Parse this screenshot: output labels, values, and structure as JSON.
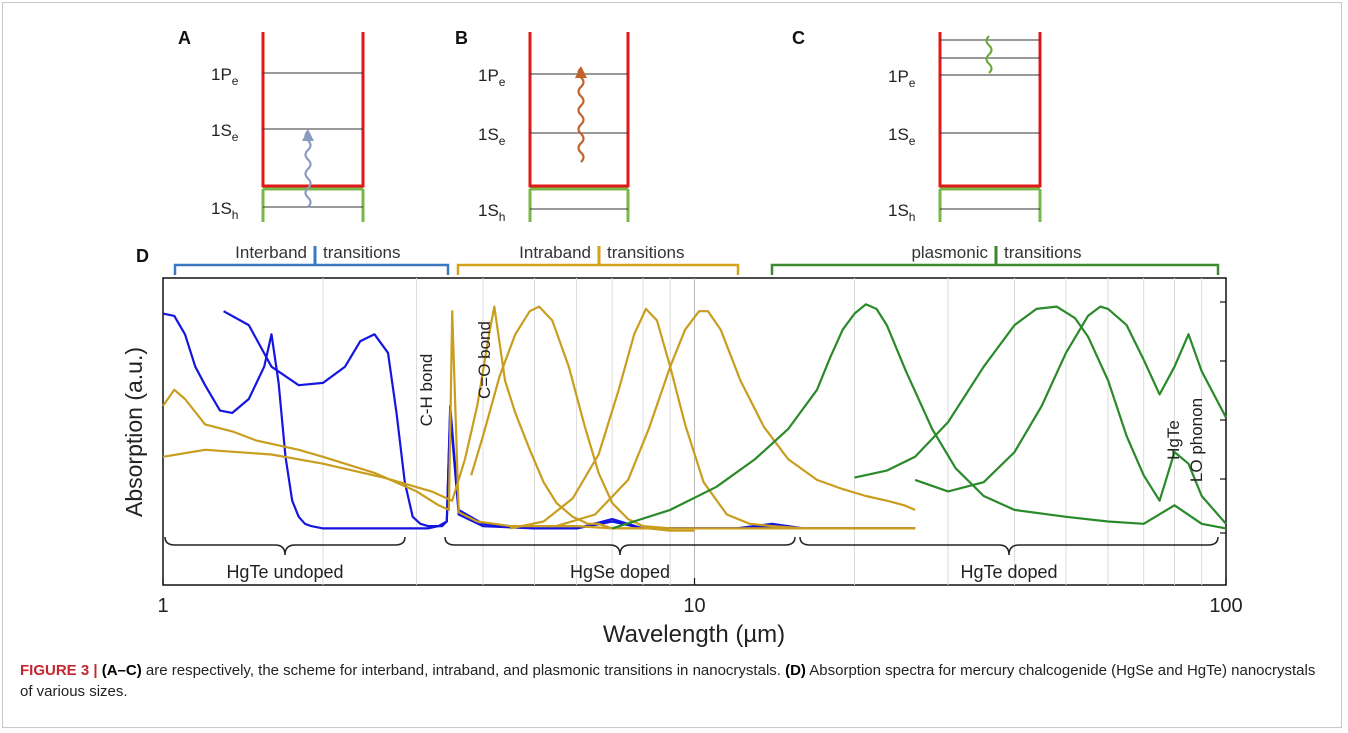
{
  "schemes": [
    {
      "letter": "A",
      "levels": [
        "1P",
        "1S",
        "1S"
      ],
      "subs": [
        "e",
        "e",
        "h"
      ],
      "arrow_color": "#8a9bbd"
    },
    {
      "letter": "B",
      "levels": [
        "1P",
        "1S",
        "1S"
      ],
      "subs": [
        "e",
        "e",
        "h"
      ],
      "arrow_color": "#c0622a"
    },
    {
      "letter": "C",
      "levels": [
        "1P",
        "1S",
        "1S"
      ],
      "subs": [
        "e",
        "e",
        "h"
      ],
      "arrow_color": "#6aaa3a"
    }
  ],
  "panel_d_letter": "D",
  "top_brackets": [
    {
      "left": "Interband",
      "right": "transitions",
      "color": "#3a78c0"
    },
    {
      "left": "Intraband",
      "right": "transitions",
      "color": "#d1a21a"
    },
    {
      "left": "plasmonic",
      "right": "transitions",
      "color": "#3c8a2e"
    }
  ],
  "bottom_brackets": [
    "HgTe undoped",
    "HgSe doped",
    "HgTe doped"
  ],
  "annotations": [
    "C-H bond",
    "C=O bond",
    "HgTe",
    "LO phonon"
  ],
  "colors": {
    "blue": "#1515e0",
    "gold": "#c99d1e",
    "green": "#2a8a2a",
    "red": "#e01818",
    "levelgreen": "#78b84a"
  },
  "chart_data": {
    "type": "line",
    "title": "",
    "xlabel": "Wavelength (µm)",
    "ylabel": "Absorption (a.u.)",
    "xscale": "log",
    "xlim": [
      1,
      100
    ],
    "ylim": [
      0,
      1
    ],
    "xticks": [
      "1",
      "10",
      "100"
    ],
    "grid": "vertical",
    "series": [
      {
        "color": "blue",
        "x": [
          1.0,
          1.05,
          1.1,
          1.15,
          1.2,
          1.28,
          1.35,
          1.45,
          1.55,
          1.6,
          1.65,
          1.7,
          1.75,
          1.8,
          1.85,
          1.9,
          2.0,
          2.2,
          2.4,
          2.6,
          2.75,
          2.85,
          2.95,
          3.05,
          3.15,
          3.3,
          3.42,
          3.47,
          3.6,
          4,
          5,
          6,
          7,
          8,
          9,
          10,
          12,
          14,
          16,
          20,
          26
        ],
        "y": [
          0.95,
          0.94,
          0.86,
          0.72,
          0.64,
          0.53,
          0.52,
          0.58,
          0.72,
          0.86,
          0.65,
          0.33,
          0.14,
          0.07,
          0.04,
          0.03,
          0.02,
          0.02,
          0.02,
          0.02,
          0.02,
          0.02,
          0.02,
          0.02,
          0.02,
          0.03,
          0.05,
          0.52,
          0.08,
          0.03,
          0.02,
          0.02,
          0.06,
          0.02,
          0.02,
          0.02,
          0.02,
          0.04,
          0.02,
          0.02,
          0.02
        ]
      },
      {
        "color": "blue",
        "x": [
          1.3,
          1.45,
          1.6,
          1.8,
          2.0,
          2.2,
          2.35,
          2.5,
          2.65,
          2.75,
          2.85,
          2.95,
          3.05,
          3.15,
          3.25,
          3.35,
          3.42,
          3.47,
          3.6,
          4,
          5,
          6,
          7,
          8,
          10,
          12,
          14,
          16,
          20,
          26
        ],
        "y": [
          0.96,
          0.9,
          0.72,
          0.64,
          0.65,
          0.72,
          0.83,
          0.86,
          0.78,
          0.52,
          0.22,
          0.07,
          0.04,
          0.03,
          0.03,
          0.03,
          0.05,
          0.55,
          0.1,
          0.04,
          0.02,
          0.02,
          0.05,
          0.02,
          0.02,
          0.02,
          0.03,
          0.02,
          0.02,
          0.02
        ]
      },
      {
        "color": "gold",
        "x": [
          1.0,
          1.05,
          1.1,
          1.2,
          1.35,
          1.5,
          1.8,
          2.0,
          2.5,
          3.0,
          3.3,
          3.45,
          3.5,
          3.6,
          3.9,
          4.2,
          4.5,
          5.0,
          5.5,
          6,
          7,
          8,
          9,
          10,
          12,
          15,
          20,
          26
        ],
        "y": [
          0.55,
          0.62,
          0.58,
          0.47,
          0.44,
          0.4,
          0.36,
          0.33,
          0.26,
          0.18,
          0.12,
          0.1,
          0.96,
          0.09,
          0.05,
          0.04,
          0.03,
          0.03,
          0.03,
          0.03,
          0.02,
          0.02,
          0.02,
          0.02,
          0.02,
          0.02,
          0.02,
          0.02
        ]
      },
      {
        "color": "gold",
        "x": [
          1.0,
          1.2,
          1.6,
          2.0,
          2.6,
          3.2,
          3.5,
          3.7,
          3.9,
          4.1,
          4.2,
          4.3,
          4.4,
          4.6,
          4.9,
          5.2,
          5.5,
          5.9,
          6.3,
          6.6,
          7.0,
          7.5,
          8.2,
          9.0,
          10
        ],
        "y": [
          0.33,
          0.36,
          0.34,
          0.3,
          0.24,
          0.18,
          0.14,
          0.32,
          0.55,
          0.85,
          0.98,
          0.82,
          0.66,
          0.52,
          0.36,
          0.22,
          0.13,
          0.07,
          0.04,
          0.04,
          0.02,
          0.02,
          0.02,
          0.01,
          0.01
        ]
      },
      {
        "color": "gold",
        "x": [
          3.8,
          4.0,
          4.3,
          4.6,
          4.9,
          5.1,
          5.4,
          5.8,
          6.2,
          6.6,
          7.0,
          7.5,
          8.0,
          9.0
        ],
        "y": [
          0.25,
          0.42,
          0.68,
          0.86,
          0.96,
          0.98,
          0.92,
          0.72,
          0.47,
          0.26,
          0.13,
          0.06,
          0.03,
          0.02
        ]
      },
      {
        "color": "gold",
        "x": [
          4.5,
          5.2,
          5.9,
          6.6,
          7.2,
          7.7,
          8.1,
          8.5,
          9.0,
          9.6,
          10.4,
          11.5,
          12.7,
          14,
          16,
          20,
          26
        ],
        "y": [
          0.02,
          0.05,
          0.15,
          0.34,
          0.62,
          0.86,
          0.97,
          0.92,
          0.72,
          0.47,
          0.22,
          0.08,
          0.04,
          0.03,
          0.02,
          0.02,
          0.02
        ]
      },
      {
        "color": "gold",
        "x": [
          5.5,
          6.5,
          7.5,
          8.2,
          9.0,
          9.6,
          10.2,
          10.6,
          11.2,
          12.2,
          13.5,
          15,
          17,
          19,
          21,
          23,
          24.8,
          26
        ],
        "y": [
          0.03,
          0.08,
          0.23,
          0.45,
          0.72,
          0.88,
          0.96,
          0.96,
          0.88,
          0.66,
          0.46,
          0.32,
          0.23,
          0.19,
          0.16,
          0.14,
          0.12,
          0.1
        ]
      },
      {
        "color": "green",
        "x": [
          7,
          9,
          11,
          13,
          15,
          17,
          18,
          19,
          20,
          21,
          22,
          23,
          25,
          28,
          31,
          35,
          40,
          50,
          60,
          70,
          80,
          90,
          100
        ],
        "y": [
          0.02,
          0.1,
          0.2,
          0.32,
          0.45,
          0.62,
          0.76,
          0.88,
          0.95,
          0.99,
          0.97,
          0.9,
          0.7,
          0.45,
          0.28,
          0.16,
          0.1,
          0.07,
          0.05,
          0.04,
          0.12,
          0.04,
          0.02
        ]
      },
      {
        "color": "green",
        "x": [
          20,
          23,
          26,
          30,
          35,
          40,
          44,
          48,
          52,
          55,
          60,
          65,
          70,
          75,
          80,
          85,
          90,
          100
        ],
        "y": [
          0.24,
          0.27,
          0.33,
          0.48,
          0.72,
          0.9,
          0.97,
          0.98,
          0.93,
          0.85,
          0.66,
          0.42,
          0.25,
          0.14,
          0.35,
          0.3,
          0.16,
          0.04
        ]
      },
      {
        "color": "green",
        "x": [
          26,
          30,
          35,
          40,
          45,
          50,
          55,
          58,
          60,
          65,
          70,
          75,
          80,
          85,
          90,
          100
        ],
        "y": [
          0.23,
          0.18,
          0.22,
          0.35,
          0.55,
          0.78,
          0.94,
          0.98,
          0.97,
          0.9,
          0.75,
          0.6,
          0.72,
          0.86,
          0.7,
          0.5
        ]
      }
    ]
  }
}
